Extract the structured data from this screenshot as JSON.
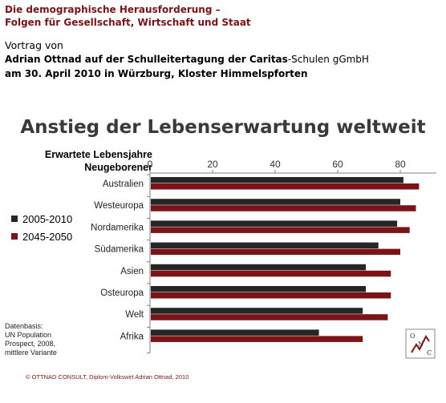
{
  "header": {
    "title_line1": "Die demographische Herausforderung –",
    "title_line2": "Folgen für Gesellschaft, Wirtschaft und Staat",
    "talk_label": "Vortrag von",
    "speaker_bold": "Adrian Ottnad auf der Schulleitertagung der Caritas",
    "speaker_plain": "-Schulen gGmbH",
    "date_line": "am 30. April 2010 in Würzburg, Kloster Himmelspforten"
  },
  "chart_data": {
    "type": "bar",
    "orientation": "horizontal",
    "title": "Anstieg der Lebenserwartung weltweit",
    "value_axis_title": "Erwartete Lebensjahre Neugeborener",
    "categories": [
      "Australien",
      "Westeuropa",
      "Nordamerika",
      "Südamerika",
      "Asien",
      "Osteuropa",
      "Welt",
      "Afrika"
    ],
    "xlim": [
      0,
      90
    ],
    "xticks": [
      0,
      20,
      40,
      60,
      80
    ],
    "grid": false,
    "legend_position": "left",
    "series": [
      {
        "name": "2005-2010",
        "color": "#262626",
        "values": [
          81,
          80,
          79,
          73,
          69,
          69,
          68,
          54
        ]
      },
      {
        "name": "2045-2050",
        "color": "#7a1416",
        "values": [
          86,
          85,
          83,
          80,
          77,
          77,
          76,
          68
        ]
      }
    ]
  },
  "source_note": [
    "Datenbasis:",
    "UN Population",
    "Prospect,  2008,",
    "mittlere Variante"
  ],
  "footer": "© OTTNAD CONSULT, Diplom-Volkswirt Adrian Ottnad, 2010",
  "logo_text": "O N C",
  "colors": {
    "accent": "#7a1416",
    "dark_bar": "#262626",
    "axis": "#808080"
  }
}
